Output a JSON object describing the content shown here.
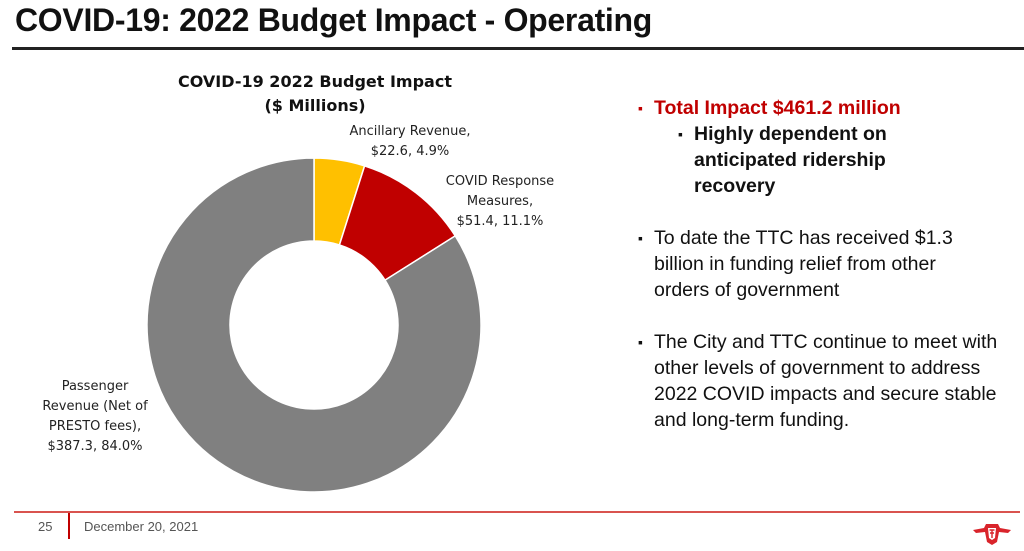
{
  "slide": {
    "title": "COVID-19: 2022 Budget Impact - Operating",
    "page_number": "25",
    "date": "December 20, 2021",
    "logo_icon": "ttc-logo-icon"
  },
  "bullets": {
    "main": "Total Impact $461.2 million",
    "main_sub": "Highly dependent on anticipated ridership recovery",
    "second": "To date the TTC has received $1.3 billion in funding relief from other orders of government",
    "third": "The City and TTC continue to meet with other levels of government to address 2022 COVID impacts and secure stable and long-term funding.",
    "marker": "▪"
  },
  "chart_data": {
    "type": "pie",
    "variant": "donut",
    "title": "COVID-19 2022 Budget Impact",
    "subtitle": "($ Millions)",
    "start_angle": "12 o'clock, clockwise",
    "slices": [
      {
        "name": "Ancillary Revenue",
        "value": 22.6,
        "percent": 4.9,
        "color": "#ffc000",
        "label_lines": [
          "Ancillary Revenue,",
          "$22.6, 4.9%"
        ]
      },
      {
        "name": "COVID Response Measures",
        "value": 51.4,
        "percent": 11.1,
        "color": "#c00000",
        "label_lines": [
          "COVID Response",
          "Measures,",
          "$51.4, 11.1%"
        ]
      },
      {
        "name": "Passenger Revenue (Net of PRESTO fees)",
        "value": 387.3,
        "percent": 84.0,
        "color": "#808080",
        "label_lines": [
          "Passenger",
          "Revenue (Net of",
          "PRESTO fees),",
          "$387.3, 84.0%"
        ]
      }
    ],
    "total": 461.2,
    "legend": "none",
    "colors": {
      "accent": "#c00000",
      "slice_border": "#ffffff"
    }
  }
}
